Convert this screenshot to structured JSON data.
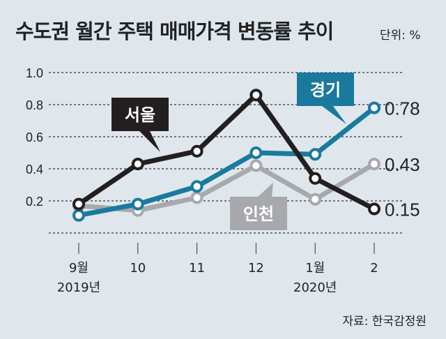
{
  "title": "수도권 월간 주택 매매가격 변동률 추이",
  "unit": "단위: %",
  "source": "자료: 한국감정원",
  "chart_data": {
    "type": "line",
    "title": "수도권 월간 주택 매매가격 변동률 추이",
    "categories": [
      "9월",
      "10",
      "11",
      "12",
      "1월",
      "2"
    ],
    "year_labels": [
      "2019년",
      "",
      "",
      "",
      "2020년",
      ""
    ],
    "yticks": [
      "1.0",
      "0.8",
      "0.6",
      "0.4",
      "0.2"
    ],
    "ylim": [
      0,
      1.0
    ],
    "grid": true,
    "series": [
      {
        "name": "서울",
        "color": "#231f20",
        "values": [
          0.18,
          0.43,
          0.51,
          0.86,
          0.34,
          0.15
        ],
        "end_label": "0.15"
      },
      {
        "name": "경기",
        "color": "#1a7a9e",
        "values": [
          0.11,
          0.18,
          0.29,
          0.5,
          0.49,
          0.78
        ],
        "end_label": "0.78"
      },
      {
        "name": "인천",
        "color": "#a7a9ac",
        "values": [
          0.17,
          0.14,
          0.22,
          0.42,
          0.21,
          0.43
        ],
        "end_label": "0.43"
      }
    ]
  }
}
